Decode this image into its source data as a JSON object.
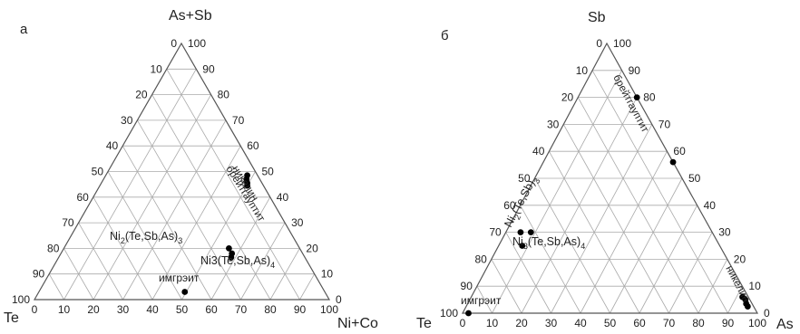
{
  "chart_data": [
    {
      "type": "scatter",
      "panel_label": "а",
      "top_label": "As+Sb",
      "left_label": "Te",
      "right_label": "Ni+Co",
      "ticks": [
        0,
        10,
        20,
        30,
        40,
        50,
        60,
        70,
        80,
        90,
        100
      ],
      "grid": true,
      "points": [
        {
          "top": 48.5,
          "right": 48.0
        },
        {
          "top": 47.0,
          "right": 48.5
        },
        {
          "top": 45.5,
          "right": 49.5
        },
        {
          "top": 44.5,
          "right": 50.0
        },
        {
          "top": 20.0,
          "right": 56.0
        },
        {
          "top": 18.0,
          "right": 58.0
        },
        {
          "top": 16.5,
          "right": 58.5
        },
        {
          "top": 3.0,
          "right": 49.5
        }
      ],
      "annotations": [
        {
          "text": "никелин",
          "rotated": true
        },
        {
          "text": "брейтгауптит",
          "rotated": true
        },
        {
          "text": "Ni",
          "sub": "2",
          "mid": "(Te,Sb,As)",
          "sub2": "3"
        },
        {
          "text": "Ni3(Te,Sb,As)",
          "sub2": "4"
        },
        {
          "text": "имгрэит"
        }
      ]
    },
    {
      "type": "scatter",
      "panel_label": "б",
      "top_label": "Sb",
      "left_label": "Te",
      "right_label": "As",
      "ticks": [
        0,
        10,
        20,
        30,
        40,
        50,
        60,
        70,
        80,
        90,
        100
      ],
      "grid": true,
      "points": [
        {
          "top": 80.0,
          "right": 20.0
        },
        {
          "top": 56.0,
          "right": 44.0
        },
        {
          "top": 30.0,
          "right": 5.0
        },
        {
          "top": 30.0,
          "right": 8.5
        },
        {
          "top": 25.0,
          "right": 8.0
        },
        {
          "top": 6.0,
          "right": 92.0
        },
        {
          "top": 5.0,
          "right": 93.5
        },
        {
          "top": 3.5,
          "right": 94.5
        },
        {
          "top": 2.5,
          "right": 95.5
        },
        {
          "top": 0.0,
          "right": 2.0
        }
      ],
      "annotations": [
        {
          "text": "брейтгауптит",
          "rotated": true
        },
        {
          "text": "Ni",
          "sub": "2",
          "mid": "(Te,Sb)",
          "sub2": "3",
          "rotated": true
        },
        {
          "text": "Ni",
          "sub": "3",
          "mid": "(Te,Sb,As)",
          "sub2": "4"
        },
        {
          "text": "никелин",
          "rotated": true
        },
        {
          "text": "имгрэит"
        }
      ]
    }
  ]
}
